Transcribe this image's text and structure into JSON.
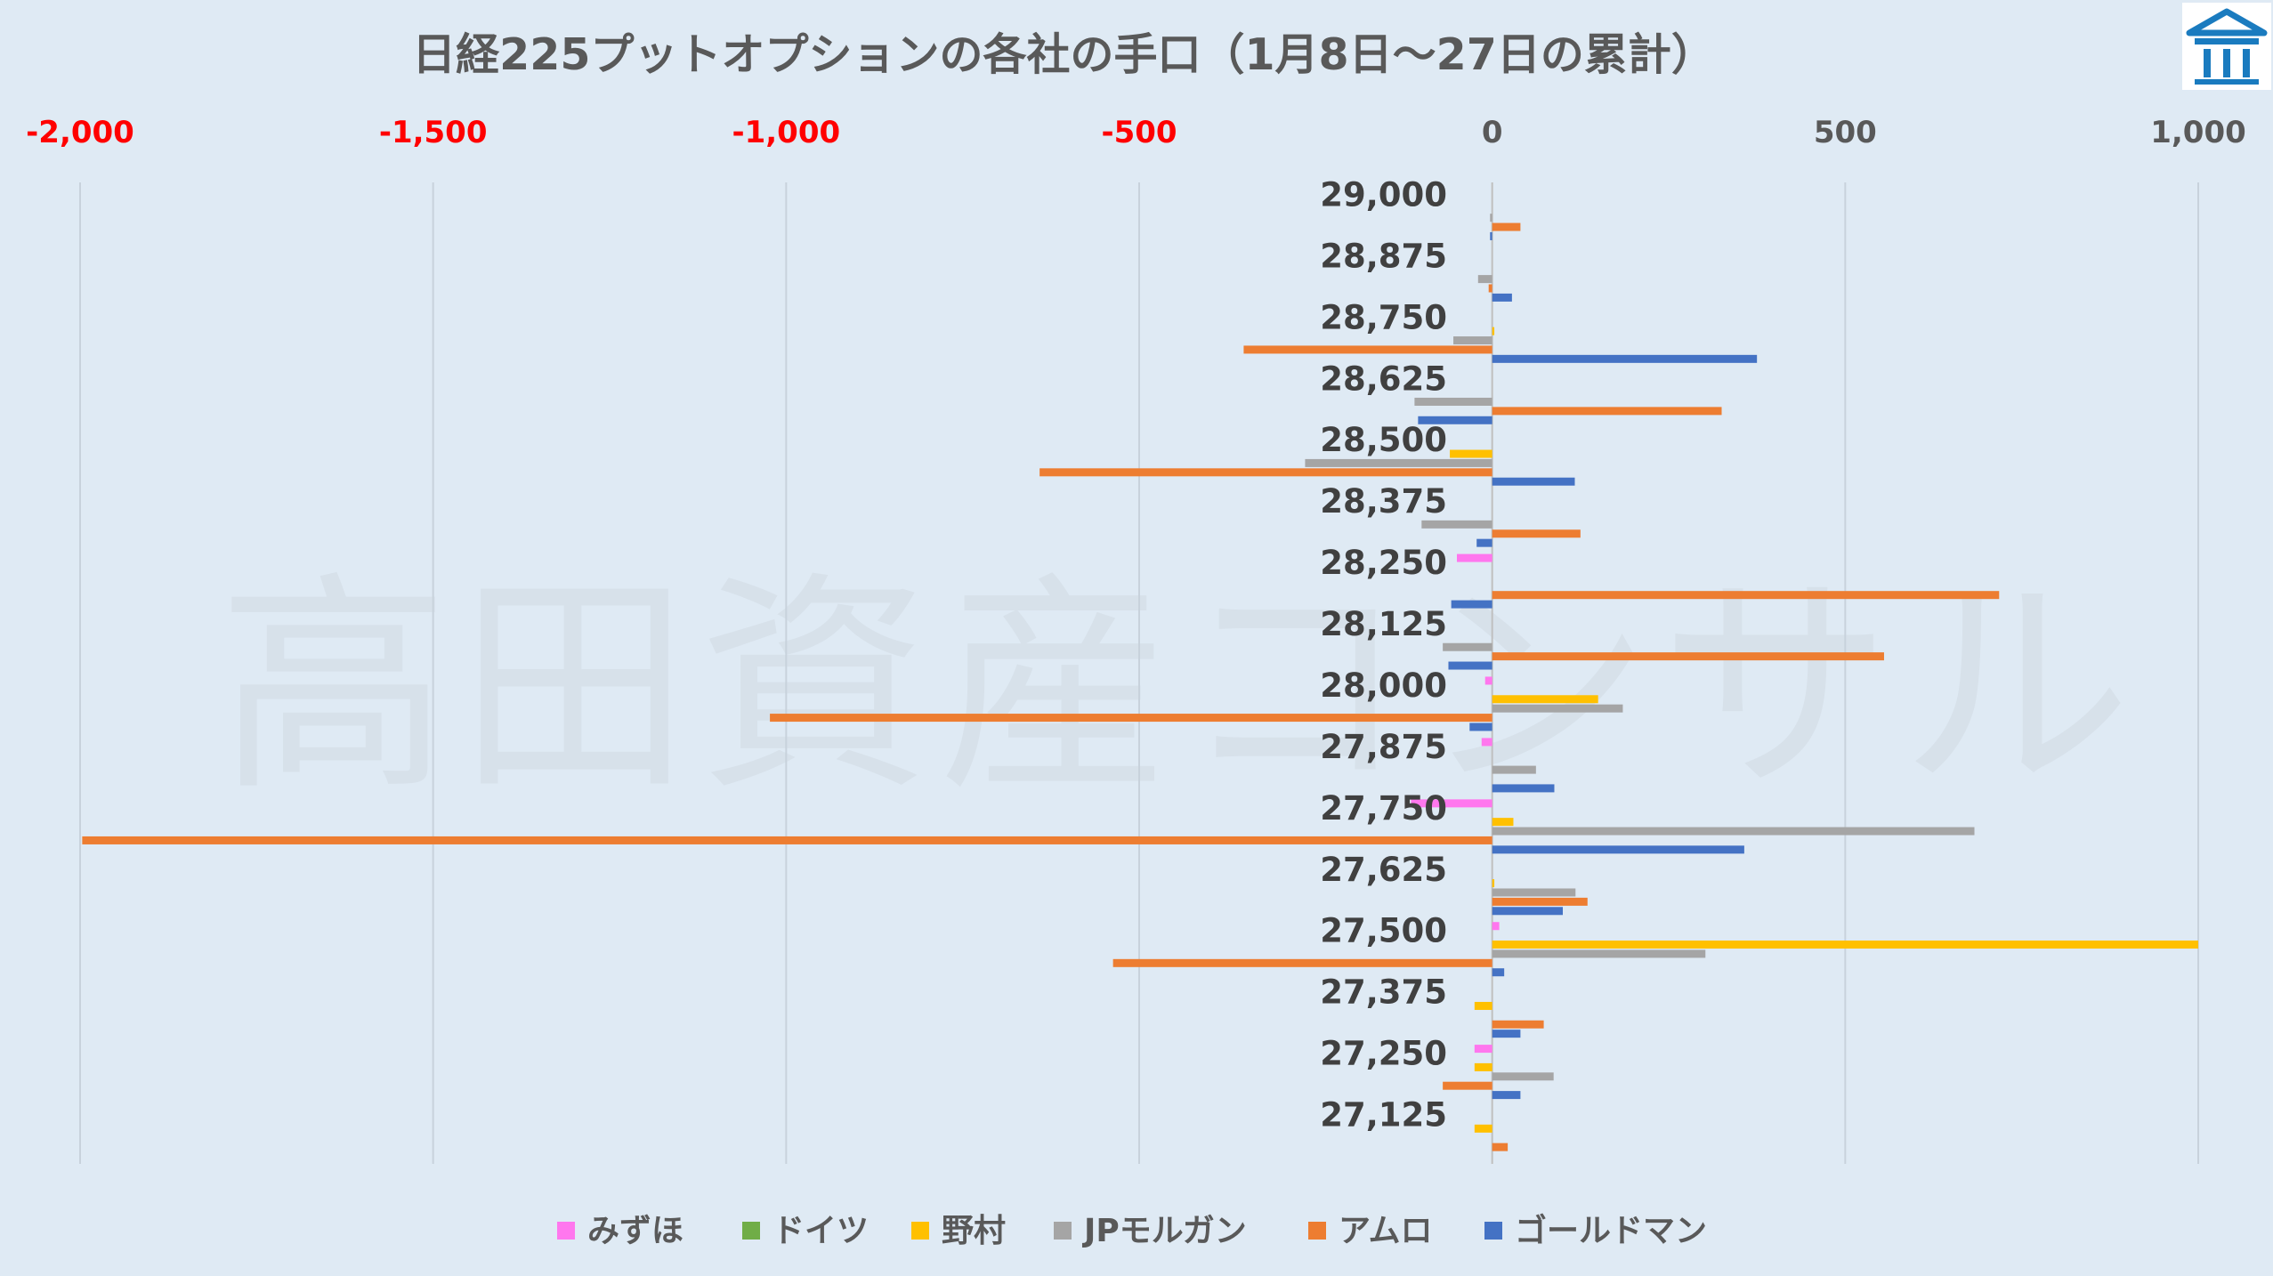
{
  "chart_data": {
    "type": "bar",
    "orientation": "horizontal",
    "title": "日経225プットオプションの各社の手口（1月8日～27日の累計）",
    "watermark": "高田資産コンサル",
    "xlim": [
      -2000,
      1000
    ],
    "x_ticks": [
      {
        "value": -2000,
        "label": "-2,000"
      },
      {
        "value": -1500,
        "label": "-1,500"
      },
      {
        "value": -1000,
        "label": "-1,000"
      },
      {
        "value": -500,
        "label": "-500"
      },
      {
        "value": 0,
        "label": "0"
      },
      {
        "value": 500,
        "label": "500"
      },
      {
        "value": 1000,
        "label": "1,000"
      }
    ],
    "negative_tick_color": "#ff0000",
    "positive_tick_color": "#595959",
    "grid": true,
    "legend_position": "bottom",
    "categories": [
      "29,000",
      "28,875",
      "28,750",
      "28,625",
      "28,500",
      "28,375",
      "28,250",
      "28,125",
      "28,000",
      "27,875",
      "27,750",
      "27,625",
      "27,500",
      "27,375",
      "27,250",
      "27,125"
    ],
    "series": [
      {
        "name": "みずほ",
        "color": "#ff77ee",
        "values": [
          0,
          0,
          0,
          0,
          0,
          0,
          -50,
          0,
          -10,
          -15,
          -115,
          0,
          10,
          0,
          -25,
          0
        ]
      },
      {
        "name": "ドイツ",
        "color": "#70ad47",
        "values": [
          0,
          0,
          0,
          0,
          0,
          0,
          0,
          0,
          0,
          0,
          0,
          0,
          0,
          0,
          0,
          0
        ]
      },
      {
        "name": "野村",
        "color": "#ffc000",
        "values": [
          0,
          0,
          3,
          0,
          -60,
          0,
          0,
          0,
          150,
          0,
          30,
          3,
          1000,
          -25,
          -25,
          -25
        ]
      },
      {
        "name": "JPモルガン",
        "color": "#a5a5a5",
        "values": [
          -3,
          -20,
          -55,
          -110,
          -265,
          -100,
          0,
          -70,
          185,
          62,
          683,
          118,
          302,
          0,
          87,
          0
        ]
      },
      {
        "name": "アムロ",
        "color": "#ed7d31",
        "values": [
          40,
          -5,
          -352,
          325,
          -641,
          125,
          718,
          555,
          -1023,
          0,
          -1997,
          135,
          -537,
          73,
          -70,
          22
        ]
      },
      {
        "name": "ゴールドマン",
        "color": "#4472c4",
        "values": [
          -3,
          28,
          375,
          -105,
          117,
          -22,
          -58,
          -62,
          -32,
          88,
          357,
          100,
          17,
          40,
          40,
          0
        ]
      }
    ]
  }
}
